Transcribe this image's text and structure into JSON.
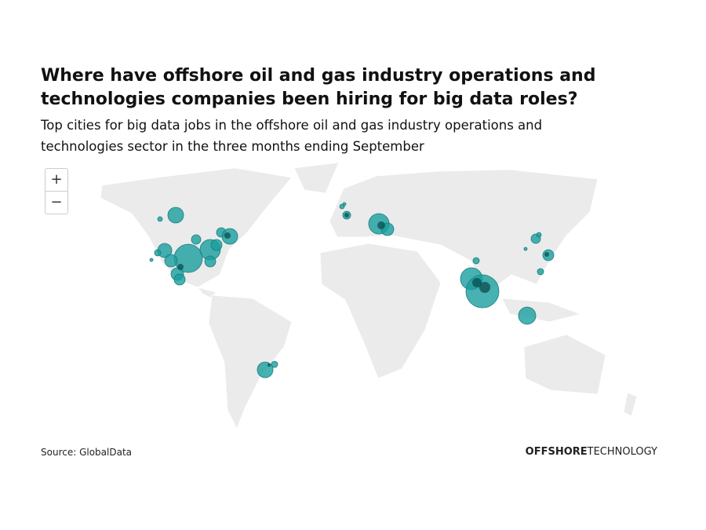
{
  "header": {
    "title_lines": [
      "Where have offshore oil and gas industry operations and",
      "technologies companies been hiring for big data roles?"
    ],
    "subtitle_lines": [
      "Top cities for big data jobs in the offshore oil and gas industry operations and",
      "technologies sector in the three months ending September"
    ]
  },
  "zoom": {
    "in": "+",
    "out": "−"
  },
  "footer": {
    "source": "Source: GlobalData",
    "brand_bold": "OFFSHORE",
    "brand_light": "TECHNOLOGY"
  }
}
